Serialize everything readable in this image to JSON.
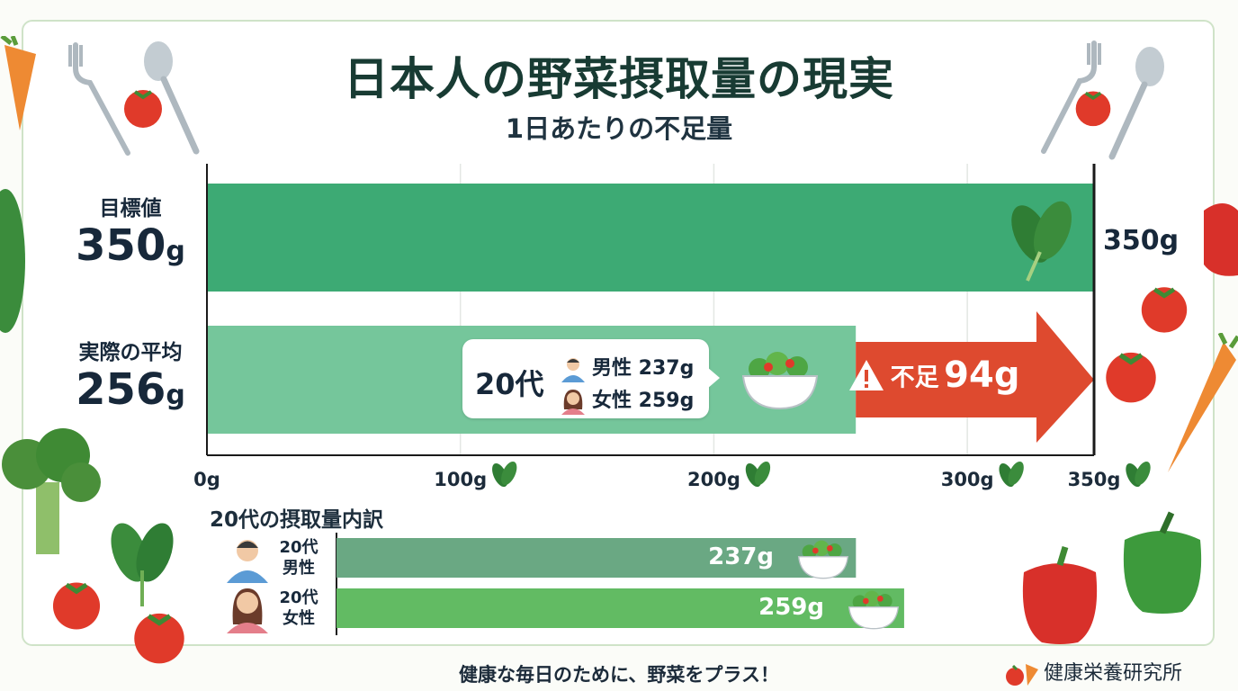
{
  "title": "日本人の野菜摂取量の現実",
  "subtitle": "1日あたりの不足量",
  "target": {
    "label": "目標値",
    "value": "350",
    "unit": "g"
  },
  "average": {
    "label": "実際の平均",
    "value": "256",
    "unit": "g"
  },
  "target_end_label": "350g",
  "callout": {
    "age": "20代",
    "male": "男性 237g",
    "female": "女性 259g"
  },
  "shortage": {
    "label": "不足",
    "value": "94g"
  },
  "breakdown": {
    "title": "20代の摂取量内訳",
    "rows": [
      {
        "label_line1": "20代",
        "label_line2": "男性",
        "value_text": "237g"
      },
      {
        "label_line1": "20代",
        "label_line2": "女性",
        "value_text": "259g"
      }
    ]
  },
  "footer": "健康な毎日のために、野菜をプラス！",
  "organization": "健康栄養研究所",
  "colors": {
    "target_bar": "#3daa74",
    "average_bar": "#75c69b",
    "shortage": "#de4a2f",
    "male_bar": "#6aa883",
    "female_bar": "#62bb63"
  },
  "chart_data": {
    "type": "bar",
    "orientation": "horizontal",
    "title": "日本人の野菜摂取量の現実",
    "subtitle": "1日あたりの不足量",
    "categories": [
      "目標値",
      "実際の平均"
    ],
    "values": [
      350,
      256
    ],
    "unit": "g",
    "xlim": [
      0,
      350
    ],
    "x_ticks": [
      "0g",
      "100g",
      "200g",
      "300g",
      "350g"
    ],
    "grid": true,
    "annotation": {
      "label": "不足",
      "value": 94,
      "from": 256,
      "to": 350
    },
    "breakdown": {
      "title": "20代の摂取量内訳",
      "categories": [
        "20代男性",
        "20代女性"
      ],
      "values": [
        237,
        259
      ]
    }
  }
}
